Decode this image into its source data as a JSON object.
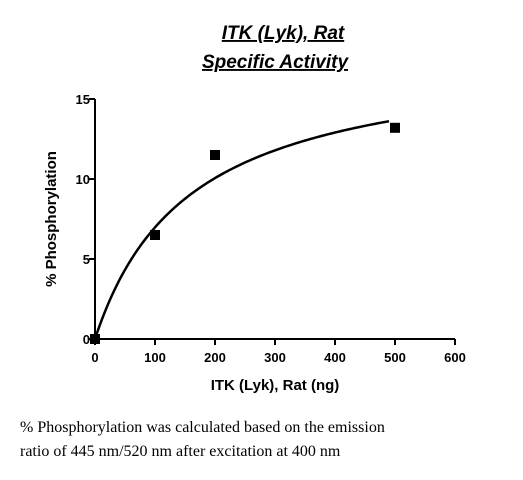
{
  "chart_data": {
    "type": "scatter",
    "title_lines": [
      "ITK (Lyk), Rat",
      "Specific Activity"
    ],
    "xlabel": "ITK (Lyk), Rat (ng)",
    "ylabel": "% Phosphorylation",
    "xlim": [
      0,
      600
    ],
    "ylim": [
      0,
      15
    ],
    "x_ticks": [
      0,
      100,
      200,
      300,
      400,
      500,
      600
    ],
    "y_ticks": [
      0,
      5,
      10,
      15
    ],
    "grid": false,
    "series": [
      {
        "marker": "square",
        "points": [
          {
            "x": 0,
            "y": 0
          },
          {
            "x": 100,
            "y": 6.5
          },
          {
            "x": 200,
            "y": 11.5
          },
          {
            "x": 500,
            "y": 13.2
          }
        ],
        "fit": {
          "model": "hyperbola",
          "vmax": 18.0,
          "km": 158,
          "x_end": 490
        }
      }
    ]
  },
  "caption": {
    "line1": "% Phosphorylation was calculated based on the emission",
    "line2": "ratio of 445 nm/520 nm after excitation at 400 nm"
  }
}
